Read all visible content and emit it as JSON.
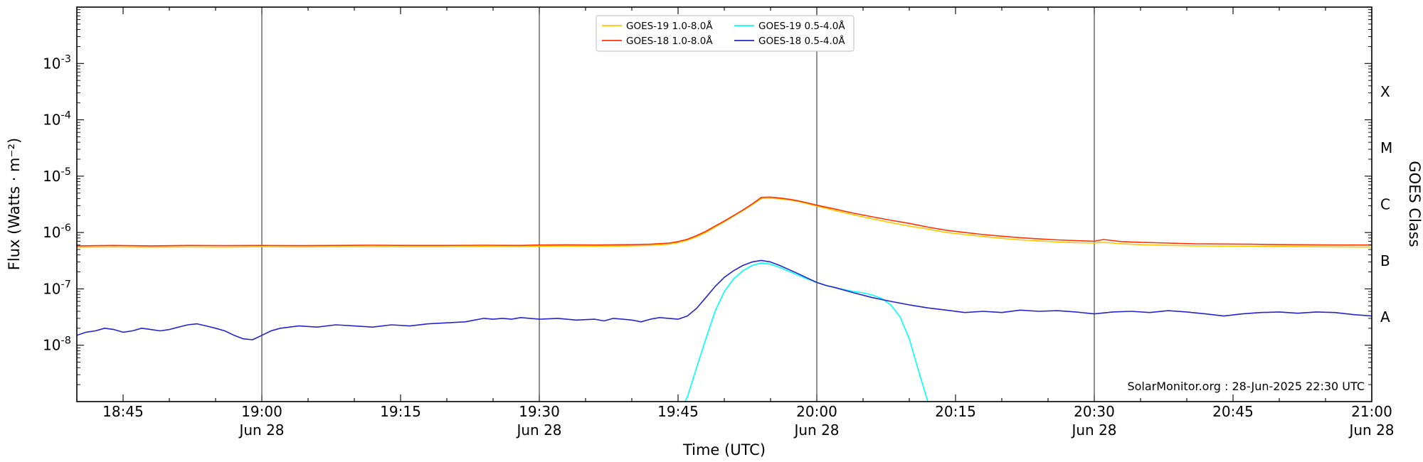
{
  "watermark": "SolarMonitor.org : 28-Jun-2025 22:30 UTC",
  "chart_data": {
    "type": "line",
    "title": "",
    "xlabel": "Time (UTC)",
    "ylabel": "Flux (Watts · m⁻²)",
    "right_axis_label": "GOES Class",
    "legend_position": "top center",
    "x_axis": {
      "unit": "UTC time, minutes after 18:40",
      "range_minutes": [
        0,
        140
      ],
      "start_utc": "18:40",
      "end_utc": "21:00",
      "minor_tick_step_minutes": 5,
      "day_line_minutes": [
        20,
        50,
        80,
        110
      ],
      "ticks": [
        {
          "min": 5,
          "label": "18:45",
          "sub": ""
        },
        {
          "min": 20,
          "label": "19:00",
          "sub": "Jun 28"
        },
        {
          "min": 35,
          "label": "19:15",
          "sub": ""
        },
        {
          "min": 50,
          "label": "19:30",
          "sub": "Jun 28"
        },
        {
          "min": 65,
          "label": "19:45",
          "sub": ""
        },
        {
          "min": 80,
          "label": "20:00",
          "sub": "Jun 28"
        },
        {
          "min": 95,
          "label": "20:15",
          "sub": ""
        },
        {
          "min": 110,
          "label": "20:30",
          "sub": "Jun 28"
        },
        {
          "min": 125,
          "label": "20:45",
          "sub": ""
        },
        {
          "min": 140,
          "label": "21:00",
          "sub": "Jun 28"
        }
      ]
    },
    "y_axis": {
      "scale": "log",
      "range": [
        1e-09,
        0.01
      ],
      "labeled_exponents": [
        -3,
        -4,
        -5,
        -6,
        -7,
        -8
      ]
    },
    "goes_class_bands": [
      {
        "label": "X",
        "exp_mid": -3.5
      },
      {
        "label": "M",
        "exp_mid": -4.5
      },
      {
        "label": "C",
        "exp_mid": -5.5
      },
      {
        "label": "B",
        "exp_mid": -6.5
      },
      {
        "label": "A",
        "exp_mid": -7.5
      }
    ],
    "series": [
      {
        "name": "GOES-19 1.0-8.0Å",
        "color": "#ffc800",
        "points": [
          [
            0,
            5.5e-07
          ],
          [
            4,
            5.55e-07
          ],
          [
            8,
            5.5e-07
          ],
          [
            12,
            5.55e-07
          ],
          [
            16,
            5.5e-07
          ],
          [
            20,
            5.6e-07
          ],
          [
            24,
            5.55e-07
          ],
          [
            28,
            5.6e-07
          ],
          [
            32,
            5.6e-07
          ],
          [
            36,
            5.6e-07
          ],
          [
            40,
            5.6e-07
          ],
          [
            44,
            5.65e-07
          ],
          [
            48,
            5.6e-07
          ],
          [
            50,
            5.7e-07
          ],
          [
            53,
            5.75e-07
          ],
          [
            56,
            5.7e-07
          ],
          [
            58,
            5.75e-07
          ],
          [
            60,
            5.8e-07
          ],
          [
            62,
            5.9e-07
          ],
          [
            64,
            6.2e-07
          ],
          [
            65,
            6.6e-07
          ],
          [
            66,
            7.3e-07
          ],
          [
            67,
            8.4e-07
          ],
          [
            68,
            1e-06
          ],
          [
            69,
            1.25e-06
          ],
          [
            70,
            1.55e-06
          ],
          [
            71,
            1.95e-06
          ],
          [
            72,
            2.45e-06
          ],
          [
            73,
            3.1e-06
          ],
          [
            74,
            4e-06
          ],
          [
            75,
            4.05e-06
          ],
          [
            76,
            3.95e-06
          ],
          [
            77,
            3.8e-06
          ],
          [
            78,
            3.55e-06
          ],
          [
            79,
            3.25e-06
          ],
          [
            80,
            2.95e-06
          ],
          [
            82,
            2.45e-06
          ],
          [
            84,
            2.05e-06
          ],
          [
            86,
            1.75e-06
          ],
          [
            88,
            1.5e-06
          ],
          [
            90,
            1.3e-06
          ],
          [
            92,
            1.15e-06
          ],
          [
            94,
            1e-06
          ],
          [
            96,
            9.2e-07
          ],
          [
            98,
            8.5e-07
          ],
          [
            100,
            7.9e-07
          ],
          [
            102,
            7.4e-07
          ],
          [
            104,
            7.1e-07
          ],
          [
            106,
            6.8e-07
          ],
          [
            108,
            6.6e-07
          ],
          [
            110,
            6.5e-07
          ],
          [
            111,
            6.7e-07
          ],
          [
            112,
            6.5e-07
          ],
          [
            113,
            6.3e-07
          ],
          [
            115,
            6.1e-07
          ],
          [
            118,
            5.9e-07
          ],
          [
            121,
            5.8e-07
          ],
          [
            124,
            5.75e-07
          ],
          [
            127,
            5.7e-07
          ],
          [
            130,
            5.65e-07
          ],
          [
            133,
            5.6e-07
          ],
          [
            136,
            5.55e-07
          ],
          [
            140,
            5.5e-07
          ]
        ]
      },
      {
        "name": "GOES-18 1.0-8.0Å",
        "color": "#ff3200",
        "points": [
          [
            0,
            5.8e-07
          ],
          [
            4,
            5.9e-07
          ],
          [
            8,
            5.8e-07
          ],
          [
            12,
            5.9e-07
          ],
          [
            16,
            5.85e-07
          ],
          [
            20,
            5.9e-07
          ],
          [
            24,
            5.85e-07
          ],
          [
            28,
            5.9e-07
          ],
          [
            32,
            5.95e-07
          ],
          [
            36,
            5.9e-07
          ],
          [
            40,
            5.9e-07
          ],
          [
            44,
            5.95e-07
          ],
          [
            48,
            5.9e-07
          ],
          [
            50,
            6e-07
          ],
          [
            53,
            6.05e-07
          ],
          [
            56,
            6e-07
          ],
          [
            58,
            6.05e-07
          ],
          [
            60,
            6.1e-07
          ],
          [
            62,
            6.2e-07
          ],
          [
            64,
            6.5e-07
          ],
          [
            65,
            6.9e-07
          ],
          [
            66,
            7.6e-07
          ],
          [
            67,
            8.8e-07
          ],
          [
            68,
            1.05e-06
          ],
          [
            69,
            1.3e-06
          ],
          [
            70,
            1.6e-06
          ],
          [
            71,
            2e-06
          ],
          [
            72,
            2.5e-06
          ],
          [
            73,
            3.2e-06
          ],
          [
            74,
            4.2e-06
          ],
          [
            75,
            4.25e-06
          ],
          [
            76,
            4.1e-06
          ],
          [
            77,
            3.9e-06
          ],
          [
            78,
            3.65e-06
          ],
          [
            79,
            3.35e-06
          ],
          [
            80,
            3.05e-06
          ],
          [
            82,
            2.6e-06
          ],
          [
            84,
            2.2e-06
          ],
          [
            86,
            1.9e-06
          ],
          [
            88,
            1.65e-06
          ],
          [
            90,
            1.45e-06
          ],
          [
            92,
            1.25e-06
          ],
          [
            94,
            1.1e-06
          ],
          [
            96,
            1e-06
          ],
          [
            98,
            9.2e-07
          ],
          [
            100,
            8.6e-07
          ],
          [
            102,
            8.1e-07
          ],
          [
            104,
            7.7e-07
          ],
          [
            106,
            7.4e-07
          ],
          [
            108,
            7.2e-07
          ],
          [
            110,
            7e-07
          ],
          [
            111,
            7.5e-07
          ],
          [
            112,
            7.2e-07
          ],
          [
            113,
            6.9e-07
          ],
          [
            115,
            6.7e-07
          ],
          [
            118,
            6.5e-07
          ],
          [
            121,
            6.3e-07
          ],
          [
            124,
            6.25e-07
          ],
          [
            127,
            6.2e-07
          ],
          [
            130,
            6.1e-07
          ],
          [
            133,
            6.05e-07
          ],
          [
            136,
            6e-07
          ],
          [
            140,
            6e-07
          ]
        ]
      },
      {
        "name": "GOES-19 0.5-4.0Å",
        "color": "#00ffff",
        "points": [
          [
            65,
            6e-10
          ],
          [
            66,
            1.2e-09
          ],
          [
            67,
            4e-09
          ],
          [
            68,
            1.3e-08
          ],
          [
            69,
            4e-08
          ],
          [
            70,
            9e-08
          ],
          [
            71,
            1.5e-07
          ],
          [
            72,
            2.1e-07
          ],
          [
            73,
            2.6e-07
          ],
          [
            74,
            2.9e-07
          ],
          [
            75,
            2.75e-07
          ],
          [
            76,
            2.4e-07
          ],
          [
            77,
            2.05e-07
          ],
          [
            78,
            1.75e-07
          ],
          [
            79,
            1.5e-07
          ],
          [
            80,
            1.3e-07
          ],
          [
            81,
            1.15e-07
          ],
          [
            82,
            1.05e-07
          ],
          [
            83,
            9.7e-08
          ],
          [
            84,
            9e-08
          ],
          [
            85,
            8.5e-08
          ],
          [
            86,
            7.8e-08
          ],
          [
            87,
            6.8e-08
          ],
          [
            88,
            5.2e-08
          ],
          [
            89,
            3.2e-08
          ],
          [
            90,
            1.3e-08
          ],
          [
            91,
            3.5e-09
          ],
          [
            92,
            1e-09
          ],
          [
            93,
            5e-10
          ]
        ]
      },
      {
        "name": "GOES-18 0.5-4.0Å",
        "color": "#2424cc",
        "points": [
          [
            0,
            1.5e-08
          ],
          [
            1,
            1.7e-08
          ],
          [
            2,
            1.8e-08
          ],
          [
            3,
            2e-08
          ],
          [
            4,
            1.9e-08
          ],
          [
            5,
            1.7e-08
          ],
          [
            6,
            1.8e-08
          ],
          [
            7,
            2e-08
          ],
          [
            8,
            1.9e-08
          ],
          [
            9,
            1.8e-08
          ],
          [
            10,
            1.9e-08
          ],
          [
            11,
            2.1e-08
          ],
          [
            12,
            2.3e-08
          ],
          [
            13,
            2.4e-08
          ],
          [
            14,
            2.2e-08
          ],
          [
            15,
            2e-08
          ],
          [
            16,
            1.8e-08
          ],
          [
            17,
            1.5e-08
          ],
          [
            18,
            1.3e-08
          ],
          [
            19,
            1.25e-08
          ],
          [
            20,
            1.5e-08
          ],
          [
            21,
            1.8e-08
          ],
          [
            22,
            2e-08
          ],
          [
            23,
            2.1e-08
          ],
          [
            24,
            2.2e-08
          ],
          [
            26,
            2.1e-08
          ],
          [
            28,
            2.3e-08
          ],
          [
            30,
            2.2e-08
          ],
          [
            32,
            2.1e-08
          ],
          [
            34,
            2.3e-08
          ],
          [
            36,
            2.2e-08
          ],
          [
            38,
            2.4e-08
          ],
          [
            40,
            2.5e-08
          ],
          [
            42,
            2.6e-08
          ],
          [
            43,
            2.8e-08
          ],
          [
            44,
            3e-08
          ],
          [
            45,
            2.9e-08
          ],
          [
            46,
            3e-08
          ],
          [
            47,
            2.9e-08
          ],
          [
            48,
            3.1e-08
          ],
          [
            50,
            2.9e-08
          ],
          [
            52,
            3e-08
          ],
          [
            54,
            2.8e-08
          ],
          [
            56,
            2.9e-08
          ],
          [
            57,
            2.7e-08
          ],
          [
            58,
            3e-08
          ],
          [
            59,
            2.9e-08
          ],
          [
            60,
            2.8e-08
          ],
          [
            61,
            2.6e-08
          ],
          [
            62,
            2.9e-08
          ],
          [
            63,
            3.1e-08
          ],
          [
            64,
            3e-08
          ],
          [
            65,
            2.9e-08
          ],
          [
            66,
            3.3e-08
          ],
          [
            67,
            4.5e-08
          ],
          [
            68,
            7e-08
          ],
          [
            69,
            1.1e-07
          ],
          [
            70,
            1.6e-07
          ],
          [
            71,
            2.1e-07
          ],
          [
            72,
            2.6e-07
          ],
          [
            73,
            3e-07
          ],
          [
            74,
            3.2e-07
          ],
          [
            75,
            3e-07
          ],
          [
            76,
            2.6e-07
          ],
          [
            77,
            2.2e-07
          ],
          [
            78,
            1.85e-07
          ],
          [
            79,
            1.55e-07
          ],
          [
            80,
            1.3e-07
          ],
          [
            81,
            1.15e-07
          ],
          [
            82,
            1.05e-07
          ],
          [
            84,
            8.5e-08
          ],
          [
            86,
            7e-08
          ],
          [
            88,
            6e-08
          ],
          [
            90,
            5.2e-08
          ],
          [
            92,
            4.6e-08
          ],
          [
            94,
            4.2e-08
          ],
          [
            96,
            3.8e-08
          ],
          [
            98,
            4e-08
          ],
          [
            100,
            3.8e-08
          ],
          [
            102,
            4.2e-08
          ],
          [
            104,
            4e-08
          ],
          [
            106,
            4.1e-08
          ],
          [
            108,
            3.9e-08
          ],
          [
            110,
            3.6e-08
          ],
          [
            112,
            3.9e-08
          ],
          [
            114,
            4e-08
          ],
          [
            116,
            3.8e-08
          ],
          [
            118,
            4.1e-08
          ],
          [
            120,
            3.9e-08
          ],
          [
            122,
            3.6e-08
          ],
          [
            124,
            3.3e-08
          ],
          [
            126,
            3.6e-08
          ],
          [
            128,
            3.8e-08
          ],
          [
            130,
            3.9e-08
          ],
          [
            132,
            3.7e-08
          ],
          [
            134,
            3.9e-08
          ],
          [
            136,
            3.8e-08
          ],
          [
            138,
            3.5e-08
          ],
          [
            140,
            3.3e-08
          ]
        ]
      }
    ]
  }
}
